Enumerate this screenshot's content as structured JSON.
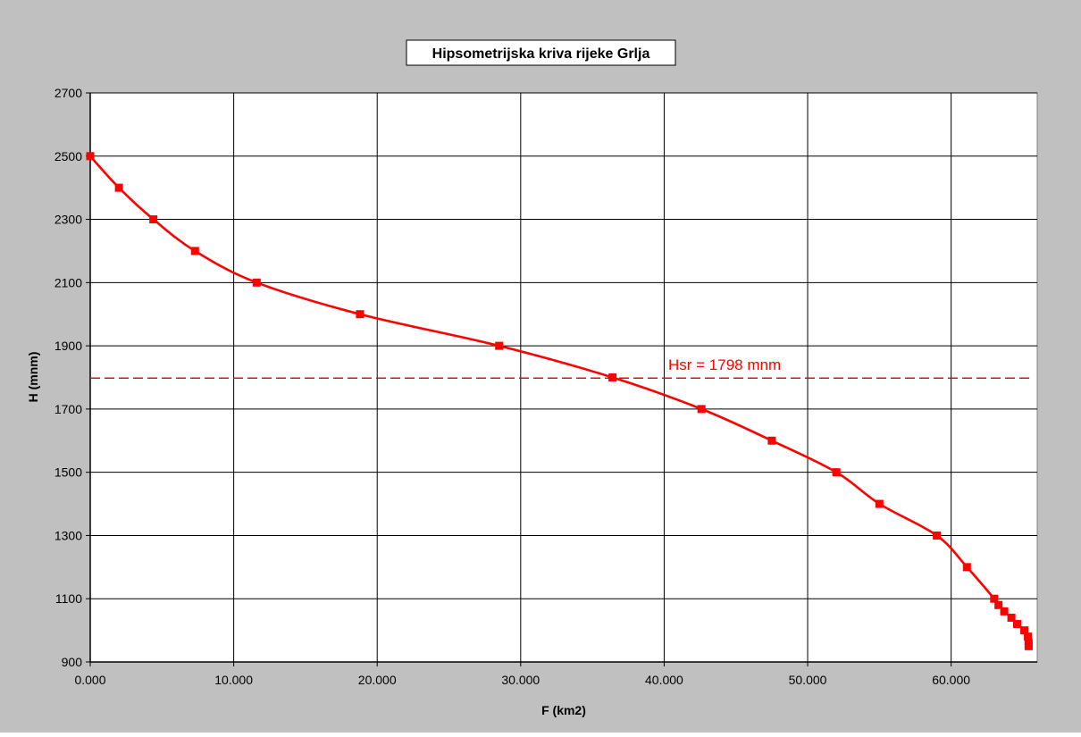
{
  "chart_data": {
    "type": "line",
    "title": "Hipsometrijska kriva rijeke Grlja",
    "xlabel": "F (km2)",
    "ylabel": "H (mnm)",
    "xlim": [
      0,
      66
    ],
    "ylim": [
      900,
      2700
    ],
    "x_ticks": [
      0,
      10,
      20,
      30,
      40,
      50,
      60
    ],
    "x_tick_labels": [
      "0.000",
      "10.000",
      "20.000",
      "30.000",
      "40.000",
      "50.000",
      "60.000"
    ],
    "y_ticks": [
      900,
      1100,
      1300,
      1500,
      1700,
      1900,
      2100,
      2300,
      2500,
      2700
    ],
    "y_tick_labels": [
      "900",
      "1100",
      "1300",
      "1500",
      "1700",
      "1900",
      "2100",
      "2300",
      "2500",
      "2700"
    ],
    "grid": true,
    "legend": "none",
    "series": [
      {
        "color": "#ff0000",
        "marker": "square",
        "x": [
          0.0,
          2.0,
          4.4,
          7.3,
          11.6,
          18.8,
          28.5,
          36.4,
          42.6,
          47.5,
          52.0,
          55.0,
          59.0,
          61.1,
          63.0,
          63.3,
          63.7,
          64.2,
          64.6,
          65.1,
          65.35,
          65.4,
          65.4
        ],
        "y": [
          2500,
          2400,
          2300,
          2200,
          2100,
          2000,
          1900,
          1800,
          1700,
          1600,
          1500,
          1400,
          1300,
          1200,
          1100,
          1080,
          1060,
          1040,
          1020,
          1000,
          980,
          960,
          950
        ]
      }
    ],
    "reference_line": {
      "y": 1798,
      "x_range": [
        0,
        65.7
      ],
      "style": "dashed",
      "color": "#ff0000",
      "label": "Hsr = 1798 mnm"
    },
    "colors": {
      "outer_background": "#c0c0c0",
      "plot_background": "#ffffff",
      "series": "#ff0000",
      "grid": "#000000"
    }
  }
}
